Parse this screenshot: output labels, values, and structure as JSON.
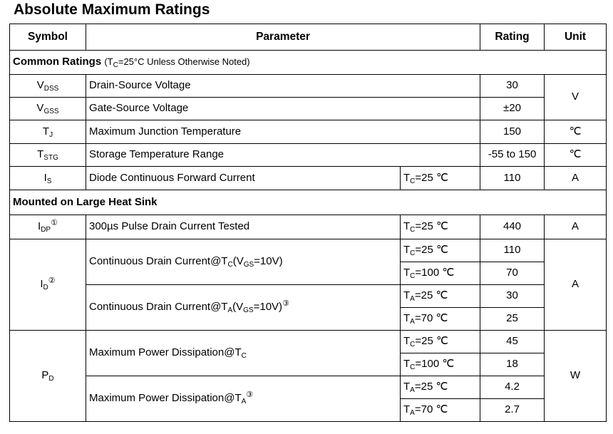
{
  "title": "Absolute Maximum Ratings",
  "headers": {
    "symbol": "Symbol",
    "parameter": "Parameter",
    "rating": "Rating",
    "unit": "Unit"
  },
  "sections": {
    "common": {
      "label": "Common Ratings",
      "note_open": "(T",
      "note_sub": "C",
      "note_rest": "=25°C Unless Otherwise Noted)"
    },
    "mounted": {
      "label": "Mounted on Large Heat Sink"
    }
  },
  "rows": {
    "vdss": {
      "sym": "V",
      "sym_sub": "DSS",
      "param": "Drain-Source Voltage",
      "rating": "30"
    },
    "vgss": {
      "sym": "V",
      "sym_sub": "GSS",
      "param": "Gate-Source Voltage",
      "rating": "±20"
    },
    "v_unit": "V",
    "tj": {
      "sym": "T",
      "sym_sub": "J",
      "param": "Maximum Junction Temperature",
      "rating": "150",
      "unit": "℃"
    },
    "tstg": {
      "sym": "T",
      "sym_sub": "STG",
      "param": "Storage Temperature Range",
      "rating": "-55 to 150",
      "unit": "℃"
    },
    "is": {
      "sym": "I",
      "sym_sub": "S",
      "param": "Diode Continuous Forward Current",
      "cond": "T",
      "cond_sub": "C",
      "cond_rest": "=25 ℃",
      "rating": "110",
      "unit": "A"
    },
    "idp": {
      "sym": "I",
      "sym_sub": "DP",
      "sym_sup": "①",
      "param": "300µs Pulse Drain Current Tested",
      "cond": "T",
      "cond_sub": "C",
      "cond_rest": "=25 ℃",
      "rating": "440",
      "unit": "A"
    },
    "id": {
      "sym": "I",
      "sym_sub": "D",
      "sym_sup": "②",
      "unit": "A",
      "tc": {
        "p1": "Continuous Drain Current@T",
        "p1_sub": "C",
        "p2": "(V",
        "p2_sub": "GS",
        "p3": "=10V)",
        "c1": "T",
        "c1_sub": "C",
        "c1_rest": "=25 ℃",
        "r1": "110",
        "c2": "T",
        "c2_sub": "C",
        "c2_rest": "=100 ℃",
        "r2": "70"
      },
      "ta": {
        "p1": "Continuous Drain Current@T",
        "p1_sub": "A",
        "p2": "(V",
        "p2_sub": "GS",
        "p3": "=10V)",
        "sup": "③",
        "c1": "T",
        "c1_sub": "A",
        "c1_rest": "=25 ℃",
        "r1": "30",
        "c2": "T",
        "c2_sub": "A",
        "c2_rest": "=70 ℃",
        "r2": "25"
      }
    },
    "pd": {
      "sym": "P",
      "sym_sub": "D",
      "unit": "W",
      "tc": {
        "p1": "Maximum Power Dissipation@T",
        "p1_sub": "C",
        "c1": "T",
        "c1_sub": "C",
        "c1_rest": "=25 ℃",
        "r1": "45",
        "c2": "T",
        "c2_sub": "C",
        "c2_rest": "=100 ℃",
        "r2": "18"
      },
      "ta": {
        "p1": "Maximum Power Dissipation@T",
        "p1_sub": "A",
        "sup": "③",
        "c1": "T",
        "c1_sub": "A",
        "c1_rest": "=25 ℃",
        "r1": "4.2",
        "c2": "T",
        "c2_sub": "A",
        "c2_rest": "=70 ℃",
        "r2": "2.7"
      }
    }
  }
}
